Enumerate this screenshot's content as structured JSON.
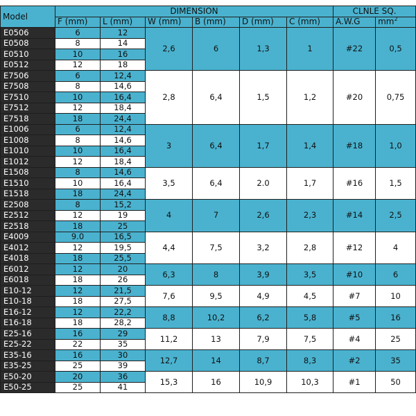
{
  "headers": {
    "model": "Model",
    "dimension": "DIMENSION",
    "clnle": "CLNLE SQ.",
    "f": "F (mm)",
    "l": "L (mm)",
    "w": "W (mm)",
    "b": "B (mm)",
    "d": "D (mm)",
    "c": "C (mm)",
    "awg": "A.W.G",
    "mm2_base": "mm",
    "mm2_sup": "2"
  },
  "groups": [
    {
      "w": "2,6",
      "b": "6",
      "d": "1,3",
      "c": "1",
      "awg": "#22",
      "mm2": "0,5",
      "rows": [
        {
          "model": "E0506",
          "f": "6",
          "l": "12"
        },
        {
          "model": "E0508",
          "f": "8",
          "l": "14"
        },
        {
          "model": "E0510",
          "f": "10",
          "l": "16"
        },
        {
          "model": "E0512",
          "f": "12",
          "l": "18"
        }
      ]
    },
    {
      "w": "2,8",
      "b": "6,4",
      "d": "1,5",
      "c": "1,2",
      "awg": "#20",
      "mm2": "0,75",
      "rows": [
        {
          "model": "E7506",
          "f": "6",
          "l": "12,4"
        },
        {
          "model": "E7508",
          "f": "8",
          "l": "14,6"
        },
        {
          "model": "E7510",
          "f": "10",
          "l": "16,4"
        },
        {
          "model": "E7512",
          "f": "12",
          "l": "18,4"
        },
        {
          "model": "E7518",
          "f": "18",
          "l": "24,4"
        }
      ]
    },
    {
      "w": "3",
      "b": "6,4",
      "d": "1,7",
      "c": "1,4",
      "awg": "#18",
      "mm2": "1,0",
      "rows": [
        {
          "model": "E1006",
          "f": "6",
          "l": "12,4"
        },
        {
          "model": "E1008",
          "f": "8",
          "l": "14,6"
        },
        {
          "model": "E1010",
          "f": "10",
          "l": "16,4"
        },
        {
          "model": "E1012",
          "f": "12",
          "l": "18,4"
        }
      ]
    },
    {
      "w": "3,5",
      "b": "6,4",
      "d": "2.0",
      "c": "1,7",
      "awg": "#16",
      "mm2": "1,5",
      "rows": [
        {
          "model": "E1508",
          "f": "8",
          "l": "14,6"
        },
        {
          "model": "E1510",
          "f": "10",
          "l": "16,4"
        },
        {
          "model": "E1518",
          "f": "18",
          "l": "24,4"
        }
      ]
    },
    {
      "w": "4",
      "b": "7",
      "d": "2,6",
      "c": "2,3",
      "awg": "#14",
      "mm2": "2,5",
      "rows": [
        {
          "model": "E2508",
          "f": "8",
          "l": "15,2"
        },
        {
          "model": "E2512",
          "f": "12",
          "l": "19"
        },
        {
          "model": "E2518",
          "f": "18",
          "l": "25"
        }
      ]
    },
    {
      "w": "4,4",
      "b": "7,5",
      "d": "3,2",
      "c": "2,8",
      "awg": "#12",
      "mm2": "4",
      "rows": [
        {
          "model": "E4009",
          "f": "9.0",
          "l": "16,5"
        },
        {
          "model": "E4012",
          "f": "12",
          "l": "19,5"
        },
        {
          "model": "E4018",
          "f": "18",
          "l": "25,5"
        }
      ]
    },
    {
      "w": "6,3",
      "b": "8",
      "d": "3,9",
      "c": "3,5",
      "awg": "#10",
      "mm2": "6",
      "rows": [
        {
          "model": "E6012",
          "f": "12",
          "l": "20"
        },
        {
          "model": "E6018",
          "f": "18",
          "l": "26"
        }
      ]
    },
    {
      "w": "7,6",
      "b": "9,5",
      "d": "4,9",
      "c": "4,5",
      "awg": "#7",
      "mm2": "10",
      "rows": [
        {
          "model": "E10-12",
          "f": "12",
          "l": "21,5"
        },
        {
          "model": "E10-18",
          "f": "18",
          "l": "27,5"
        }
      ]
    },
    {
      "w": "8,8",
      "b": "10,2",
      "d": "6,2",
      "c": "5,8",
      "awg": "#5",
      "mm2": "16",
      "rows": [
        {
          "model": "E16-12",
          "f": "12",
          "l": "22,2"
        },
        {
          "model": "E16-18",
          "f": "18",
          "l": "28,2"
        }
      ]
    },
    {
      "w": "11,2",
      "b": "13",
      "d": "7,9",
      "c": "7,5",
      "awg": "#4",
      "mm2": "25",
      "rows": [
        {
          "model": "E25-16",
          "f": "16",
          "l": "29"
        },
        {
          "model": "E25-22",
          "f": "22",
          "l": "35"
        }
      ]
    },
    {
      "w": "12,7",
      "b": "14",
      "d": "8,7",
      "c": "8,3",
      "awg": "#2",
      "mm2": "35",
      "rows": [
        {
          "model": "E35-16",
          "f": "16",
          "l": "30"
        },
        {
          "model": "E35-25",
          "f": "25",
          "l": "39"
        }
      ]
    },
    {
      "w": "15,3",
      "b": "16",
      "d": "10,9",
      "c": "10,3",
      "awg": "#1",
      "mm2": "50",
      "rows": [
        {
          "model": "E50-20",
          "f": "20",
          "l": "36"
        },
        {
          "model": "E50-25",
          "f": "25",
          "l": "41"
        }
      ]
    }
  ]
}
